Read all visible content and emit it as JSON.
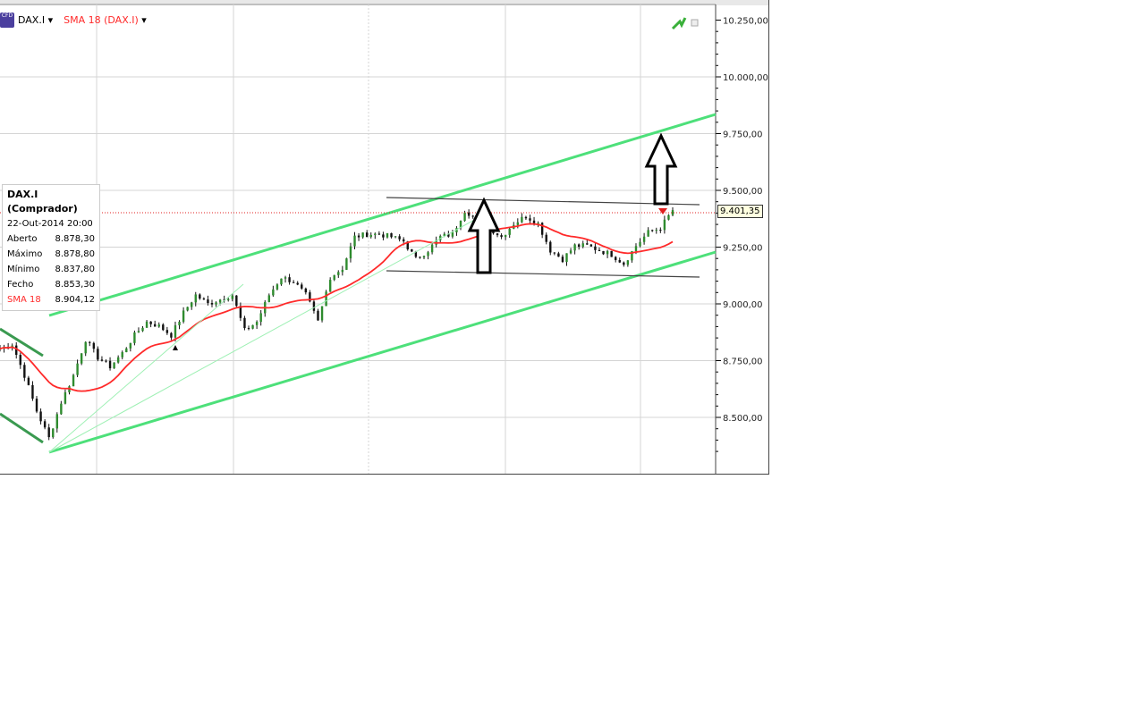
{
  "header": {
    "symbol": "DAX.I",
    "indicator": "SMA 18 (DAX.I)",
    "cfd_icon": "CFD"
  },
  "info_box": {
    "title": "DAX.I (Comprador)",
    "datetime": "22-Out-2014 20:00",
    "rows": [
      {
        "label": "Aberto",
        "value": "8.878,30"
      },
      {
        "label": "Máximo",
        "value": "8.878,80"
      },
      {
        "label": "Mínimo",
        "value": "8.837,80"
      },
      {
        "label": "Fecho",
        "value": "8.853,30"
      }
    ],
    "sma_label": "SMA 18",
    "sma_value": "8.904,12"
  },
  "last_price_label": "9.401,35",
  "colors": {
    "sma": "#ff2a2a",
    "trend": "#4de07a",
    "up": "#2e8b2e",
    "down": "#111111",
    "last": "#e02020"
  },
  "chart_data": {
    "type": "candlestick",
    "ylim": [
      8300,
      10300
    ],
    "yticks": [
      {
        "v": 10250,
        "label": "10.250,00"
      },
      {
        "v": 10000,
        "label": "10.000,00"
      },
      {
        "v": 9750,
        "label": "9.750,00"
      },
      {
        "v": 9500,
        "label": "9.500,00"
      },
      {
        "v": 9250,
        "label": "9.250,00"
      },
      {
        "v": 9000,
        "label": "9.000,00"
      },
      {
        "v": 8750,
        "label": "8.750,00"
      },
      {
        "v": 8500,
        "label": "8.500,00"
      }
    ],
    "last_price": 9401.35,
    "close_path": [
      8803,
      8823,
      8685,
      8528,
      8409,
      8567,
      8685,
      8843,
      8764,
      8724,
      8783,
      8862,
      8921,
      8902,
      8862,
      8961,
      9039,
      9000,
      9020,
      9039,
      8882,
      8921,
      9039,
      9118,
      9098,
      9039,
      8921,
      9118,
      9157,
      9295,
      9307,
      9307,
      9295,
      9276,
      9197,
      9236,
      9295,
      9307,
      9413,
      9374,
      9335,
      9295,
      9354,
      9386,
      9354,
      9236,
      9197,
      9256,
      9256,
      9236,
      9217,
      9177,
      9256,
      9315,
      9335,
      9413
    ],
    "sma_period": 18
  }
}
